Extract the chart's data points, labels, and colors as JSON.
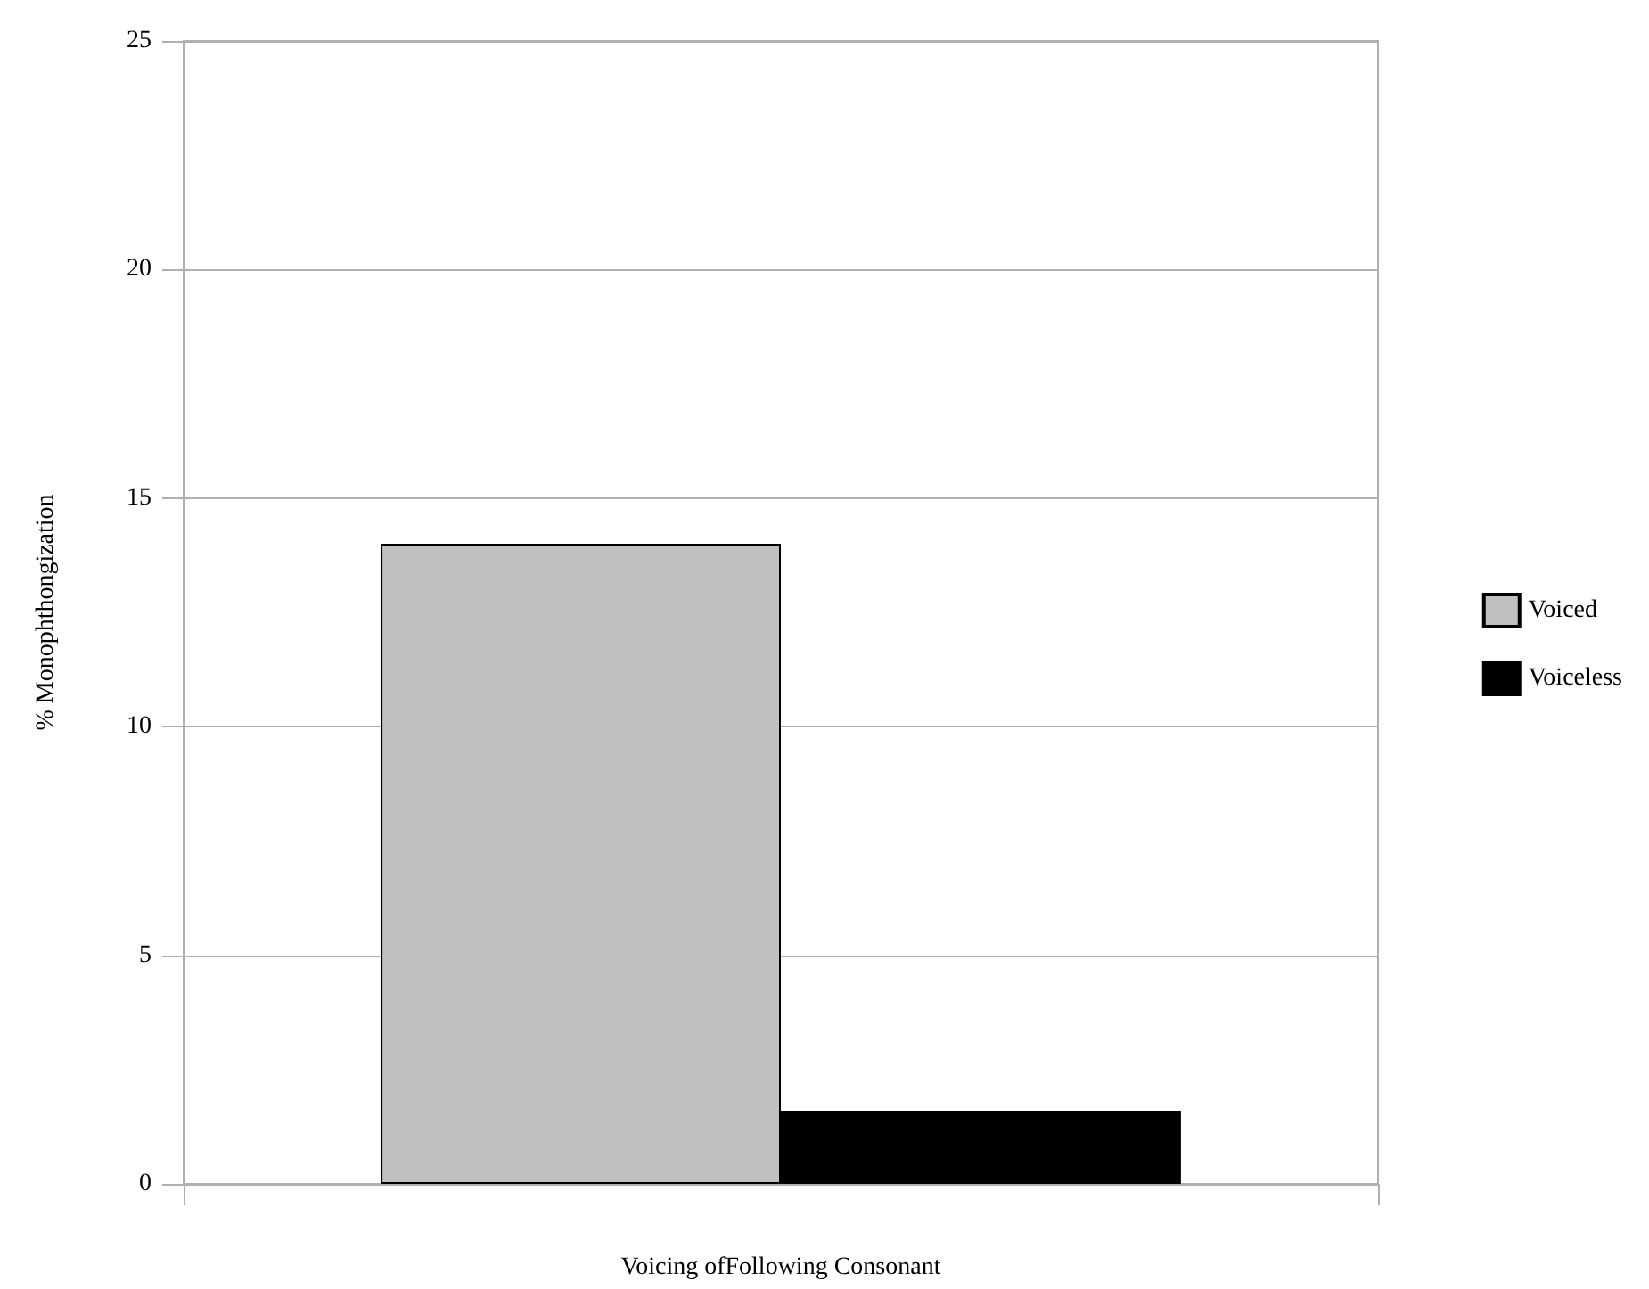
{
  "chart_data": {
    "type": "bar",
    "xlabel": "Voicing ofFollowing Consonant",
    "ylabel": "% Monophthongization",
    "categories": [
      null
    ],
    "series": [
      {
        "name": "Voiced",
        "color": "#c0c0c0",
        "values": [
          14.0
        ]
      },
      {
        "name": "Voiceless",
        "color": "#000000",
        "values": [
          1.6
        ]
      }
    ],
    "ylim": [
      0,
      25
    ],
    "yticks": [
      0,
      5,
      10,
      15,
      20,
      25
    ],
    "grid": "y",
    "legend": "right"
  }
}
